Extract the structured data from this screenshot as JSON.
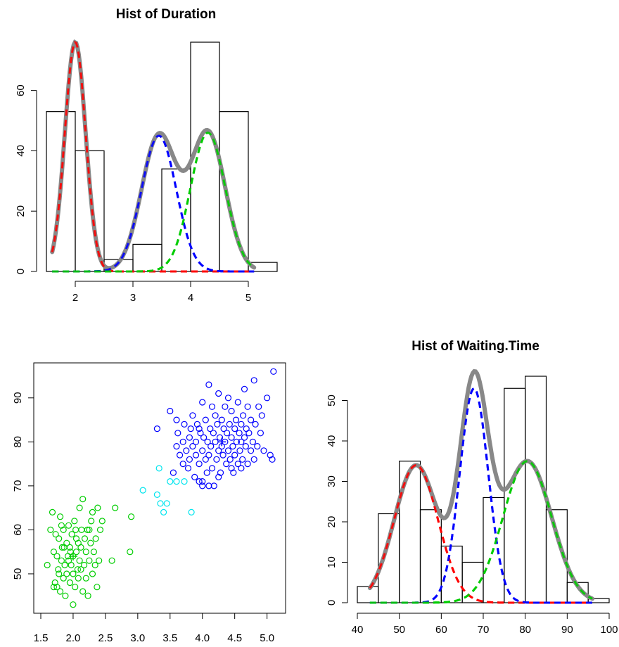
{
  "chart_data": [
    {
      "id": "duration",
      "type": "bar",
      "title": "Hist of Duration",
      "xlabel": "",
      "ylabel": "",
      "xlim": [
        1.5,
        5.5
      ],
      "ylim": [
        0,
        76
      ],
      "x_ticks": [
        2,
        3,
        4,
        5
      ],
      "y_ticks": [
        0,
        20,
        40,
        60
      ],
      "bins": [
        {
          "x0": 1.5,
          "x1": 2.0,
          "count": 53
        },
        {
          "x0": 2.0,
          "x1": 2.5,
          "count": 40
        },
        {
          "x0": 2.5,
          "x1": 3.0,
          "count": 4
        },
        {
          "x0": 3.0,
          "x1": 3.5,
          "count": 9
        },
        {
          "x0": 3.5,
          "x1": 4.0,
          "count": 34
        },
        {
          "x0": 4.0,
          "x1": 4.5,
          "count": 76
        },
        {
          "x0": 4.5,
          "x1": 5.0,
          "count": 53
        },
        {
          "x0": 5.0,
          "x1": 5.5,
          "count": 3
        }
      ],
      "density_range": [
        1.6,
        5.1
      ],
      "components": [
        {
          "color": "#ff0000",
          "mean": 2.0,
          "sd": 0.18,
          "height": 76,
          "dashed": true
        },
        {
          "color": "#0000ff",
          "mean": 3.45,
          "sd": 0.3,
          "height": 45,
          "dashed": true
        },
        {
          "color": "#00cd00",
          "mean": 4.3,
          "sd": 0.3,
          "height": 46,
          "dashed": true
        }
      ],
      "total_curve_color": "#888888",
      "grid": false
    },
    {
      "id": "scatter",
      "type": "scatter",
      "title": "",
      "xlabel": "",
      "ylabel": "",
      "xlim": [
        1.5,
        5.2
      ],
      "ylim": [
        42,
        97
      ],
      "x_ticks": [
        1.5,
        2.0,
        2.5,
        3.0,
        3.5,
        4.0,
        4.5,
        5.0
      ],
      "x_tick_labels": [
        "1.5",
        "2.0",
        "2.5",
        "3.0",
        "3.5",
        "4.0",
        "4.5",
        "5.0"
      ],
      "y_ticks": [
        50,
        60,
        70,
        80,
        90
      ],
      "series": [
        {
          "color": "#00cd00",
          "center": [
            2.0,
            54.0
          ],
          "points": [
            [
              1.6,
              52
            ],
            [
              1.65,
              60
            ],
            [
              1.68,
              64
            ],
            [
              1.7,
              55
            ],
            [
              1.72,
              48
            ],
            [
              1.73,
              59
            ],
            [
              1.75,
              54
            ],
            [
              1.75,
              47
            ],
            [
              1.77,
              51
            ],
            [
              1.78,
              58
            ],
            [
              1.8,
              63
            ],
            [
              1.8,
              46
            ],
            [
              1.82,
              53
            ],
            [
              1.83,
              56
            ],
            [
              1.85,
              49
            ],
            [
              1.85,
              60
            ],
            [
              1.87,
              52
            ],
            [
              1.88,
              45
            ],
            [
              1.9,
              57
            ],
            [
              1.9,
              50
            ],
            [
              1.92,
              54
            ],
            [
              1.93,
              61
            ],
            [
              1.95,
              48
            ],
            [
              1.95,
              56
            ],
            [
              1.97,
              52
            ],
            [
              1.98,
              59
            ],
            [
              2.0,
              43
            ],
            [
              2.0,
              50
            ],
            [
              2.0,
              54
            ],
            [
              2.02,
              62
            ],
            [
              2.03,
              47
            ],
            [
              2.05,
              55
            ],
            [
              2.05,
              58
            ],
            [
              2.07,
              51
            ],
            [
              2.08,
              49
            ],
            [
              2.1,
              65
            ],
            [
              2.1,
              53
            ],
            [
              2.12,
              56
            ],
            [
              2.13,
              60
            ],
            [
              2.15,
              67
            ],
            [
              2.15,
              46
            ],
            [
              2.17,
              52
            ],
            [
              2.18,
              58
            ],
            [
              2.2,
              55
            ],
            [
              2.2,
              49
            ],
            [
              2.22,
              60
            ],
            [
              2.23,
              45
            ],
            [
              2.25,
              53
            ],
            [
              2.27,
              57
            ],
            [
              2.28,
              62
            ],
            [
              2.3,
              50
            ],
            [
              2.3,
              64
            ],
            [
              2.32,
              55
            ],
            [
              2.35,
              58
            ],
            [
              2.37,
              47
            ],
            [
              2.38,
              65
            ],
            [
              2.4,
              53
            ],
            [
              2.42,
              60
            ],
            [
              2.45,
              62
            ],
            [
              1.7,
              47
            ],
            [
              1.78,
              50
            ],
            [
              1.86,
              56
            ],
            [
              1.93,
              53
            ],
            [
              2.04,
              60
            ],
            [
              2.12,
              51
            ],
            [
              2.25,
              60
            ],
            [
              2.34,
              52
            ],
            [
              1.82,
              61
            ],
            [
              1.96,
              55
            ],
            [
              2.08,
              57
            ],
            [
              2.6,
              53
            ],
            [
              2.65,
              65
            ],
            [
              2.88,
              55
            ],
            [
              2.9,
              63
            ]
          ]
        },
        {
          "color": "#00e5ee",
          "center": null,
          "points": [
            [
              3.08,
              69
            ],
            [
              3.3,
              68
            ],
            [
              3.33,
              74
            ],
            [
              3.35,
              66
            ],
            [
              3.4,
              64
            ],
            [
              3.45,
              66
            ],
            [
              3.5,
              71
            ],
            [
              3.6,
              71
            ],
            [
              3.72,
              71
            ],
            [
              3.83,
              64
            ]
          ]
        },
        {
          "color": "#0000ff",
          "center": [
            4.3,
            80.0
          ],
          "points": [
            [
              3.3,
              83
            ],
            [
              3.5,
              87
            ],
            [
              3.55,
              73
            ],
            [
              3.6,
              85
            ],
            [
              3.6,
              79
            ],
            [
              3.62,
              82
            ],
            [
              3.65,
              77
            ],
            [
              3.7,
              75
            ],
            [
              3.7,
              80
            ],
            [
              3.72,
              84
            ],
            [
              3.75,
              78
            ],
            [
              3.78,
              74
            ],
            [
              3.8,
              81
            ],
            [
              3.8,
              76
            ],
            [
              3.82,
              83
            ],
            [
              3.85,
              79
            ],
            [
              3.85,
              86
            ],
            [
              3.88,
              72
            ],
            [
              3.9,
              80
            ],
            [
              3.9,
              77
            ],
            [
              3.92,
              84
            ],
            [
              3.95,
              71
            ],
            [
              3.95,
              75
            ],
            [
              3.97,
              82
            ],
            [
              4.0,
              70
            ],
            [
              4.0,
              78
            ],
            [
              4.0,
              89
            ],
            [
              4.02,
              81
            ],
            [
              4.05,
              76
            ],
            [
              4.05,
              85
            ],
            [
              4.07,
              73
            ],
            [
              4.08,
              80
            ],
            [
              4.1,
              93
            ],
            [
              4.1,
              77
            ],
            [
              4.12,
              83
            ],
            [
              4.13,
              79
            ],
            [
              4.15,
              88
            ],
            [
              4.15,
              74
            ],
            [
              4.17,
              82
            ],
            [
              4.18,
              70
            ],
            [
              4.2,
              80
            ],
            [
              4.2,
              86
            ],
            [
              4.22,
              76
            ],
            [
              4.23,
              84
            ],
            [
              4.25,
              78
            ],
            [
              4.25,
              91
            ],
            [
              4.27,
              81
            ],
            [
              4.28,
              73
            ],
            [
              4.3,
              79
            ],
            [
              4.3,
              85
            ],
            [
              4.32,
              77
            ],
            [
              4.33,
              83
            ],
            [
              4.35,
              80
            ],
            [
              4.35,
              88
            ],
            [
              4.37,
              75
            ],
            [
              4.38,
              82
            ],
            [
              4.4,
              78
            ],
            [
              4.4,
              90
            ],
            [
              4.42,
              84
            ],
            [
              4.43,
              76
            ],
            [
              4.45,
              81
            ],
            [
              4.45,
              87
            ],
            [
              4.47,
              79
            ],
            [
              4.48,
              73
            ],
            [
              4.5,
              83
            ],
            [
              4.5,
              77
            ],
            [
              4.52,
              85
            ],
            [
              4.53,
              80
            ],
            [
              4.55,
              89
            ],
            [
              4.55,
              75
            ],
            [
              4.57,
              82
            ],
            [
              4.58,
              78
            ],
            [
              4.6,
              84
            ],
            [
              4.6,
              80
            ],
            [
              4.62,
              76
            ],
            [
              4.63,
              86
            ],
            [
              4.65,
              81
            ],
            [
              4.65,
              92
            ],
            [
              4.67,
              79
            ],
            [
              4.68,
              83
            ],
            [
              4.7,
              75
            ],
            [
              4.7,
              88
            ],
            [
              4.72,
              82
            ],
            [
              4.75,
              78
            ],
            [
              4.75,
              85
            ],
            [
              4.78,
              80
            ],
            [
              4.8,
              94
            ],
            [
              4.8,
              76
            ],
            [
              4.82,
              84
            ],
            [
              4.85,
              79
            ],
            [
              4.87,
              88
            ],
            [
              4.9,
              82
            ],
            [
              4.92,
              86
            ],
            [
              4.95,
              78
            ],
            [
              5.0,
              90
            ],
            [
              5.05,
              77
            ],
            [
              5.1,
              96
            ],
            [
              5.08,
              76
            ],
            [
              4.0,
              71
            ],
            [
              4.1,
              70
            ],
            [
              4.45,
              74
            ],
            [
              4.6,
              74
            ],
            [
              3.95,
              83
            ],
            [
              4.25,
              72
            ]
          ]
        }
      ],
      "grid": false
    },
    {
      "id": "waiting",
      "type": "bar",
      "title": "Hist of Waiting.Time",
      "xlabel": "",
      "ylabel": "",
      "xlim": [
        40,
        100
      ],
      "ylim": [
        0,
        56
      ],
      "x_ticks": [
        40,
        50,
        60,
        70,
        80,
        90,
        100
      ],
      "y_ticks": [
        0,
        10,
        20,
        30,
        40,
        50
      ],
      "bins": [
        {
          "x0": 40,
          "x1": 45,
          "count": 4
        },
        {
          "x0": 45,
          "x1": 50,
          "count": 22
        },
        {
          "x0": 50,
          "x1": 55,
          "count": 35
        },
        {
          "x0": 55,
          "x1": 60,
          "count": 23
        },
        {
          "x0": 60,
          "x1": 65,
          "count": 14
        },
        {
          "x0": 65,
          "x1": 70,
          "count": 10
        },
        {
          "x0": 70,
          "x1": 75,
          "count": 26
        },
        {
          "x0": 75,
          "x1": 80,
          "count": 53
        },
        {
          "x0": 80,
          "x1": 85,
          "count": 56
        },
        {
          "x0": 85,
          "x1": 90,
          "count": 23
        },
        {
          "x0": 90,
          "x1": 95,
          "count": 5
        },
        {
          "x0": 95,
          "x1": 100,
          "count": 1
        }
      ],
      "density_range": [
        43,
        96
      ],
      "components": [
        {
          "color": "#ff0000",
          "mean": 54,
          "sd": 5.2,
          "height": 34,
          "dashed": true
        },
        {
          "color": "#0000ff",
          "mean": 67.8,
          "sd": 3.4,
          "height": 53,
          "dashed": true
        },
        {
          "color": "#00cd00",
          "mean": 80.5,
          "sd": 5.8,
          "height": 35,
          "dashed": true
        }
      ],
      "total_curve_color": "#888888",
      "grid": false
    }
  ]
}
